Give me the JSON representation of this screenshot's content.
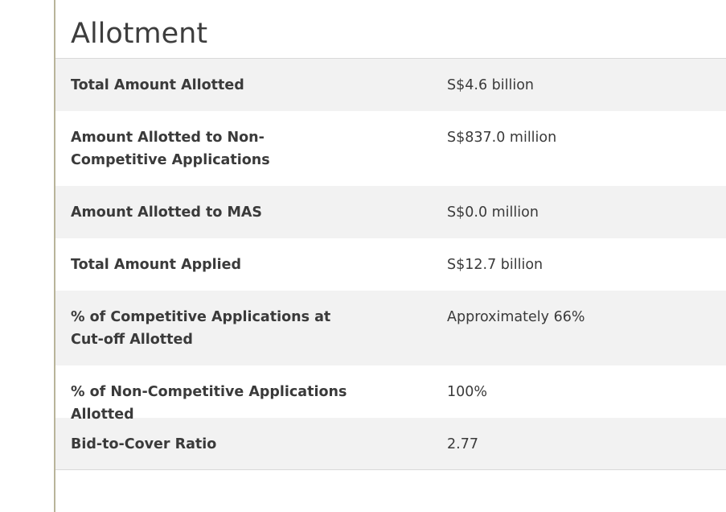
{
  "section": {
    "title": "Allotment"
  },
  "rows": [
    {
      "label": "Total Amount Allotted",
      "value": "S$4.6 billion"
    },
    {
      "label": "Amount Allotted to Non-Competitive Applications",
      "value": "S$837.0 million"
    },
    {
      "label": "Amount Allotted to MAS",
      "value": "S$0.0 million"
    },
    {
      "label": "Total Amount Applied",
      "value": "S$12.7 billion"
    },
    {
      "label": "% of Competitive Applications at Cut-off Allotted",
      "value": "Approximately 66%"
    },
    {
      "label": "% of Non-Competitive Applications Allotted",
      "value": "100%"
    },
    {
      "label": "Bid-to-Cover Ratio",
      "value": "2.77"
    }
  ]
}
